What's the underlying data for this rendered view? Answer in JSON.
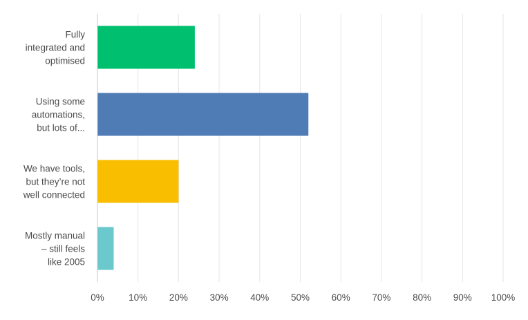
{
  "chart_data": {
    "type": "bar",
    "orientation": "horizontal",
    "categories": [
      [
        "Fully",
        "integrated and",
        "optimised"
      ],
      [
        "Using some",
        "automations,",
        "but lots of..."
      ],
      [
        "We have tools,",
        "but they’re not",
        "well connected"
      ],
      [
        "Mostly manual",
        "– still feels",
        "like 2005"
      ]
    ],
    "values": [
      24,
      52,
      20,
      4
    ],
    "colors": [
      "#00bf6f",
      "#507cb6",
      "#f9be00",
      "#6bc8cd"
    ],
    "xlim": [
      0,
      100
    ],
    "xticks": [
      "0%",
      "10%",
      "20%",
      "30%",
      "40%",
      "50%",
      "60%",
      "70%",
      "80%",
      "90%",
      "100%"
    ],
    "grid": true,
    "title": "",
    "xlabel": "",
    "ylabel": ""
  }
}
